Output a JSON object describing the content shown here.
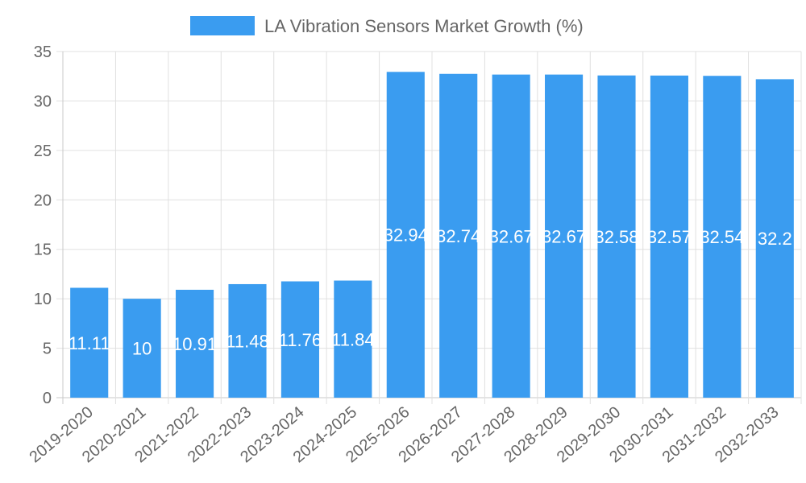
{
  "chart_data": {
    "type": "bar",
    "title": "",
    "xlabel": "",
    "ylabel": "",
    "categories": [
      "2019-2020",
      "2020-2021",
      "2021-2022",
      "2022-2023",
      "2023-2024",
      "2024-2025",
      "2025-2026",
      "2026-2027",
      "2027-2028",
      "2028-2029",
      "2029-2030",
      "2030-2031",
      "2031-2032",
      "2032-2033"
    ],
    "series": [
      {
        "name": "LA Vibration Sensors Market Growth (%)",
        "values": [
          11.11,
          10,
          10.91,
          11.48,
          11.76,
          11.84,
          32.94,
          32.74,
          32.67,
          32.67,
          32.58,
          32.57,
          32.54,
          32.2
        ],
        "color": "#3a9cf0"
      }
    ],
    "ylim": [
      0,
      35
    ],
    "yticks": [
      0,
      5,
      10,
      15,
      20,
      25,
      30,
      35
    ],
    "grid": true,
    "legend_position": "top-center",
    "data_labels": [
      "11.11",
      "10",
      "10.91",
      "11.48",
      "11.76",
      "11.84",
      "32.94",
      "32.74",
      "32.67",
      "32.67",
      "32.58",
      "32.57",
      "32.54",
      "32.2"
    ]
  },
  "colors": {
    "bar": "#3a9cf0",
    "grid": "#e0e0e0",
    "axis_text": "#666666"
  }
}
